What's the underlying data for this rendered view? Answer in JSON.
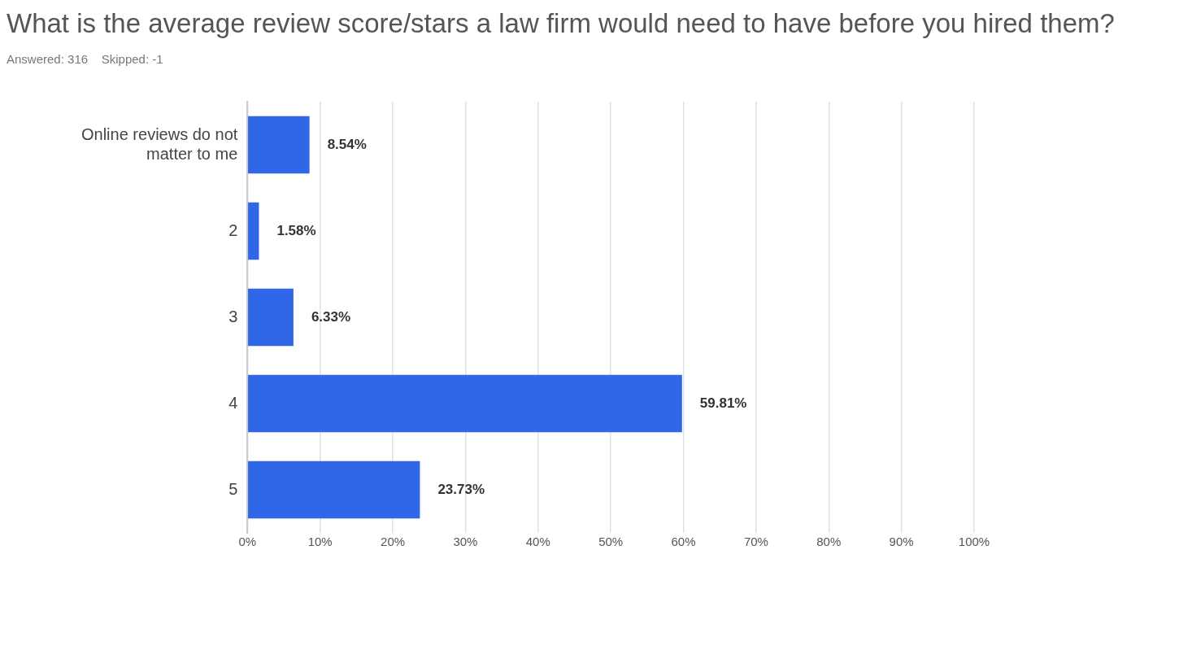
{
  "chart_data": {
    "type": "bar",
    "orientation": "horizontal",
    "title": "What is the average review score/stars a law firm would need to have before you hired them?",
    "subtitle": "Answered: 316    Skipped: -1",
    "categories": [
      "Online reviews do not matter to me",
      "2",
      "3",
      "4",
      "5"
    ],
    "values": [
      8.54,
      1.58,
      6.33,
      59.81,
      23.73
    ],
    "value_labels": [
      "8.54%",
      "1.58%",
      "6.33%",
      "59.81%",
      "23.73%"
    ],
    "color": "#3066e8",
    "xlim": [
      0,
      100
    ],
    "xticks": [
      {
        "value": 0,
        "label": "0%"
      },
      {
        "value": 10,
        "label": "10%"
      },
      {
        "value": 20,
        "label": "20%"
      },
      {
        "value": 30,
        "label": "30%"
      },
      {
        "value": 40,
        "label": "40%"
      },
      {
        "value": 50,
        "label": "50%"
      },
      {
        "value": 60,
        "label": "60%"
      },
      {
        "value": 70,
        "label": "70%"
      },
      {
        "value": 80,
        "label": "80%"
      },
      {
        "value": 90,
        "label": "90%"
      },
      {
        "value": 100,
        "label": "100%"
      }
    ],
    "grid": "x",
    "legend": false
  }
}
